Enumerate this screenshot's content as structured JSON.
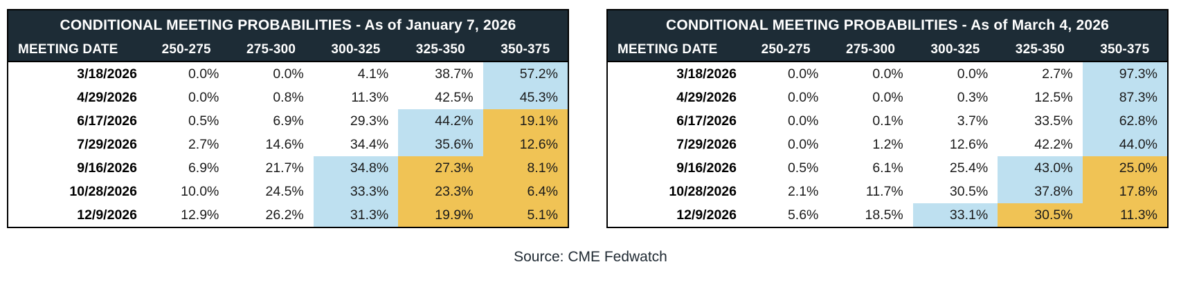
{
  "colors": {
    "header_bg": "#1d2c36",
    "header_text": "#ffffff",
    "highlight_blue": "#bee0f0",
    "highlight_orange": "#f0c355",
    "border": "#000000",
    "cell_text": "#1a1a1a"
  },
  "source_note": "Source: CME Fedwatch",
  "chart_data": [
    {
      "type": "table",
      "title": "CONDITIONAL MEETING PROBABILITIES - As of January 7, 2026",
      "columns": [
        "MEETING DATE",
        "250-275",
        "275-300",
        "300-325",
        "325-350",
        "350-375"
      ],
      "value_format": "percent",
      "rows": [
        {
          "date": "3/18/2026",
          "values": [
            0.0,
            0.0,
            4.1,
            38.7,
            57.2
          ],
          "highlights": [
            null,
            null,
            null,
            null,
            "blue"
          ]
        },
        {
          "date": "4/29/2026",
          "values": [
            0.0,
            0.8,
            11.3,
            42.5,
            45.3
          ],
          "highlights": [
            null,
            null,
            null,
            null,
            "blue"
          ]
        },
        {
          "date": "6/17/2026",
          "values": [
            0.5,
            6.9,
            29.3,
            44.2,
            19.1
          ],
          "highlights": [
            null,
            null,
            null,
            "blue",
            "orange"
          ]
        },
        {
          "date": "7/29/2026",
          "values": [
            2.7,
            14.6,
            34.4,
            35.6,
            12.6
          ],
          "highlights": [
            null,
            null,
            null,
            "blue",
            "orange"
          ]
        },
        {
          "date": "9/16/2026",
          "values": [
            6.9,
            21.7,
            34.8,
            27.3,
            8.1
          ],
          "highlights": [
            null,
            null,
            "blue",
            "orange",
            "orange"
          ]
        },
        {
          "date": "10/28/2026",
          "values": [
            10.0,
            24.5,
            33.3,
            23.3,
            6.4
          ],
          "highlights": [
            null,
            null,
            "blue",
            "orange",
            "orange"
          ]
        },
        {
          "date": "12/9/2026",
          "values": [
            12.9,
            26.2,
            31.3,
            19.9,
            5.1
          ],
          "highlights": [
            null,
            null,
            "blue",
            "orange",
            "orange"
          ]
        }
      ]
    },
    {
      "type": "table",
      "title": "CONDITIONAL MEETING PROBABILITIES - As of March 4, 2026",
      "columns": [
        "MEETING DATE",
        "250-275",
        "275-300",
        "300-325",
        "325-350",
        "350-375"
      ],
      "value_format": "percent",
      "rows": [
        {
          "date": "3/18/2026",
          "values": [
            0.0,
            0.0,
            0.0,
            2.7,
            97.3
          ],
          "highlights": [
            null,
            null,
            null,
            null,
            "blue"
          ]
        },
        {
          "date": "4/29/2026",
          "values": [
            0.0,
            0.0,
            0.3,
            12.5,
            87.3
          ],
          "highlights": [
            null,
            null,
            null,
            null,
            "blue"
          ]
        },
        {
          "date": "6/17/2026",
          "values": [
            0.0,
            0.1,
            3.7,
            33.5,
            62.8
          ],
          "highlights": [
            null,
            null,
            null,
            null,
            "blue"
          ]
        },
        {
          "date": "7/29/2026",
          "values": [
            0.0,
            1.2,
            12.6,
            42.2,
            44.0
          ],
          "highlights": [
            null,
            null,
            null,
            null,
            "blue"
          ]
        },
        {
          "date": "9/16/2026",
          "values": [
            0.5,
            6.1,
            25.4,
            43.0,
            25.0
          ],
          "highlights": [
            null,
            null,
            null,
            "blue",
            "orange"
          ]
        },
        {
          "date": "10/28/2026",
          "values": [
            2.1,
            11.7,
            30.5,
            37.8,
            17.8
          ],
          "highlights": [
            null,
            null,
            null,
            "blue",
            "orange"
          ]
        },
        {
          "date": "12/9/2026",
          "values": [
            5.6,
            18.5,
            33.1,
            30.5,
            11.3
          ],
          "highlights": [
            null,
            null,
            "blue",
            "orange",
            "orange"
          ]
        }
      ]
    }
  ]
}
